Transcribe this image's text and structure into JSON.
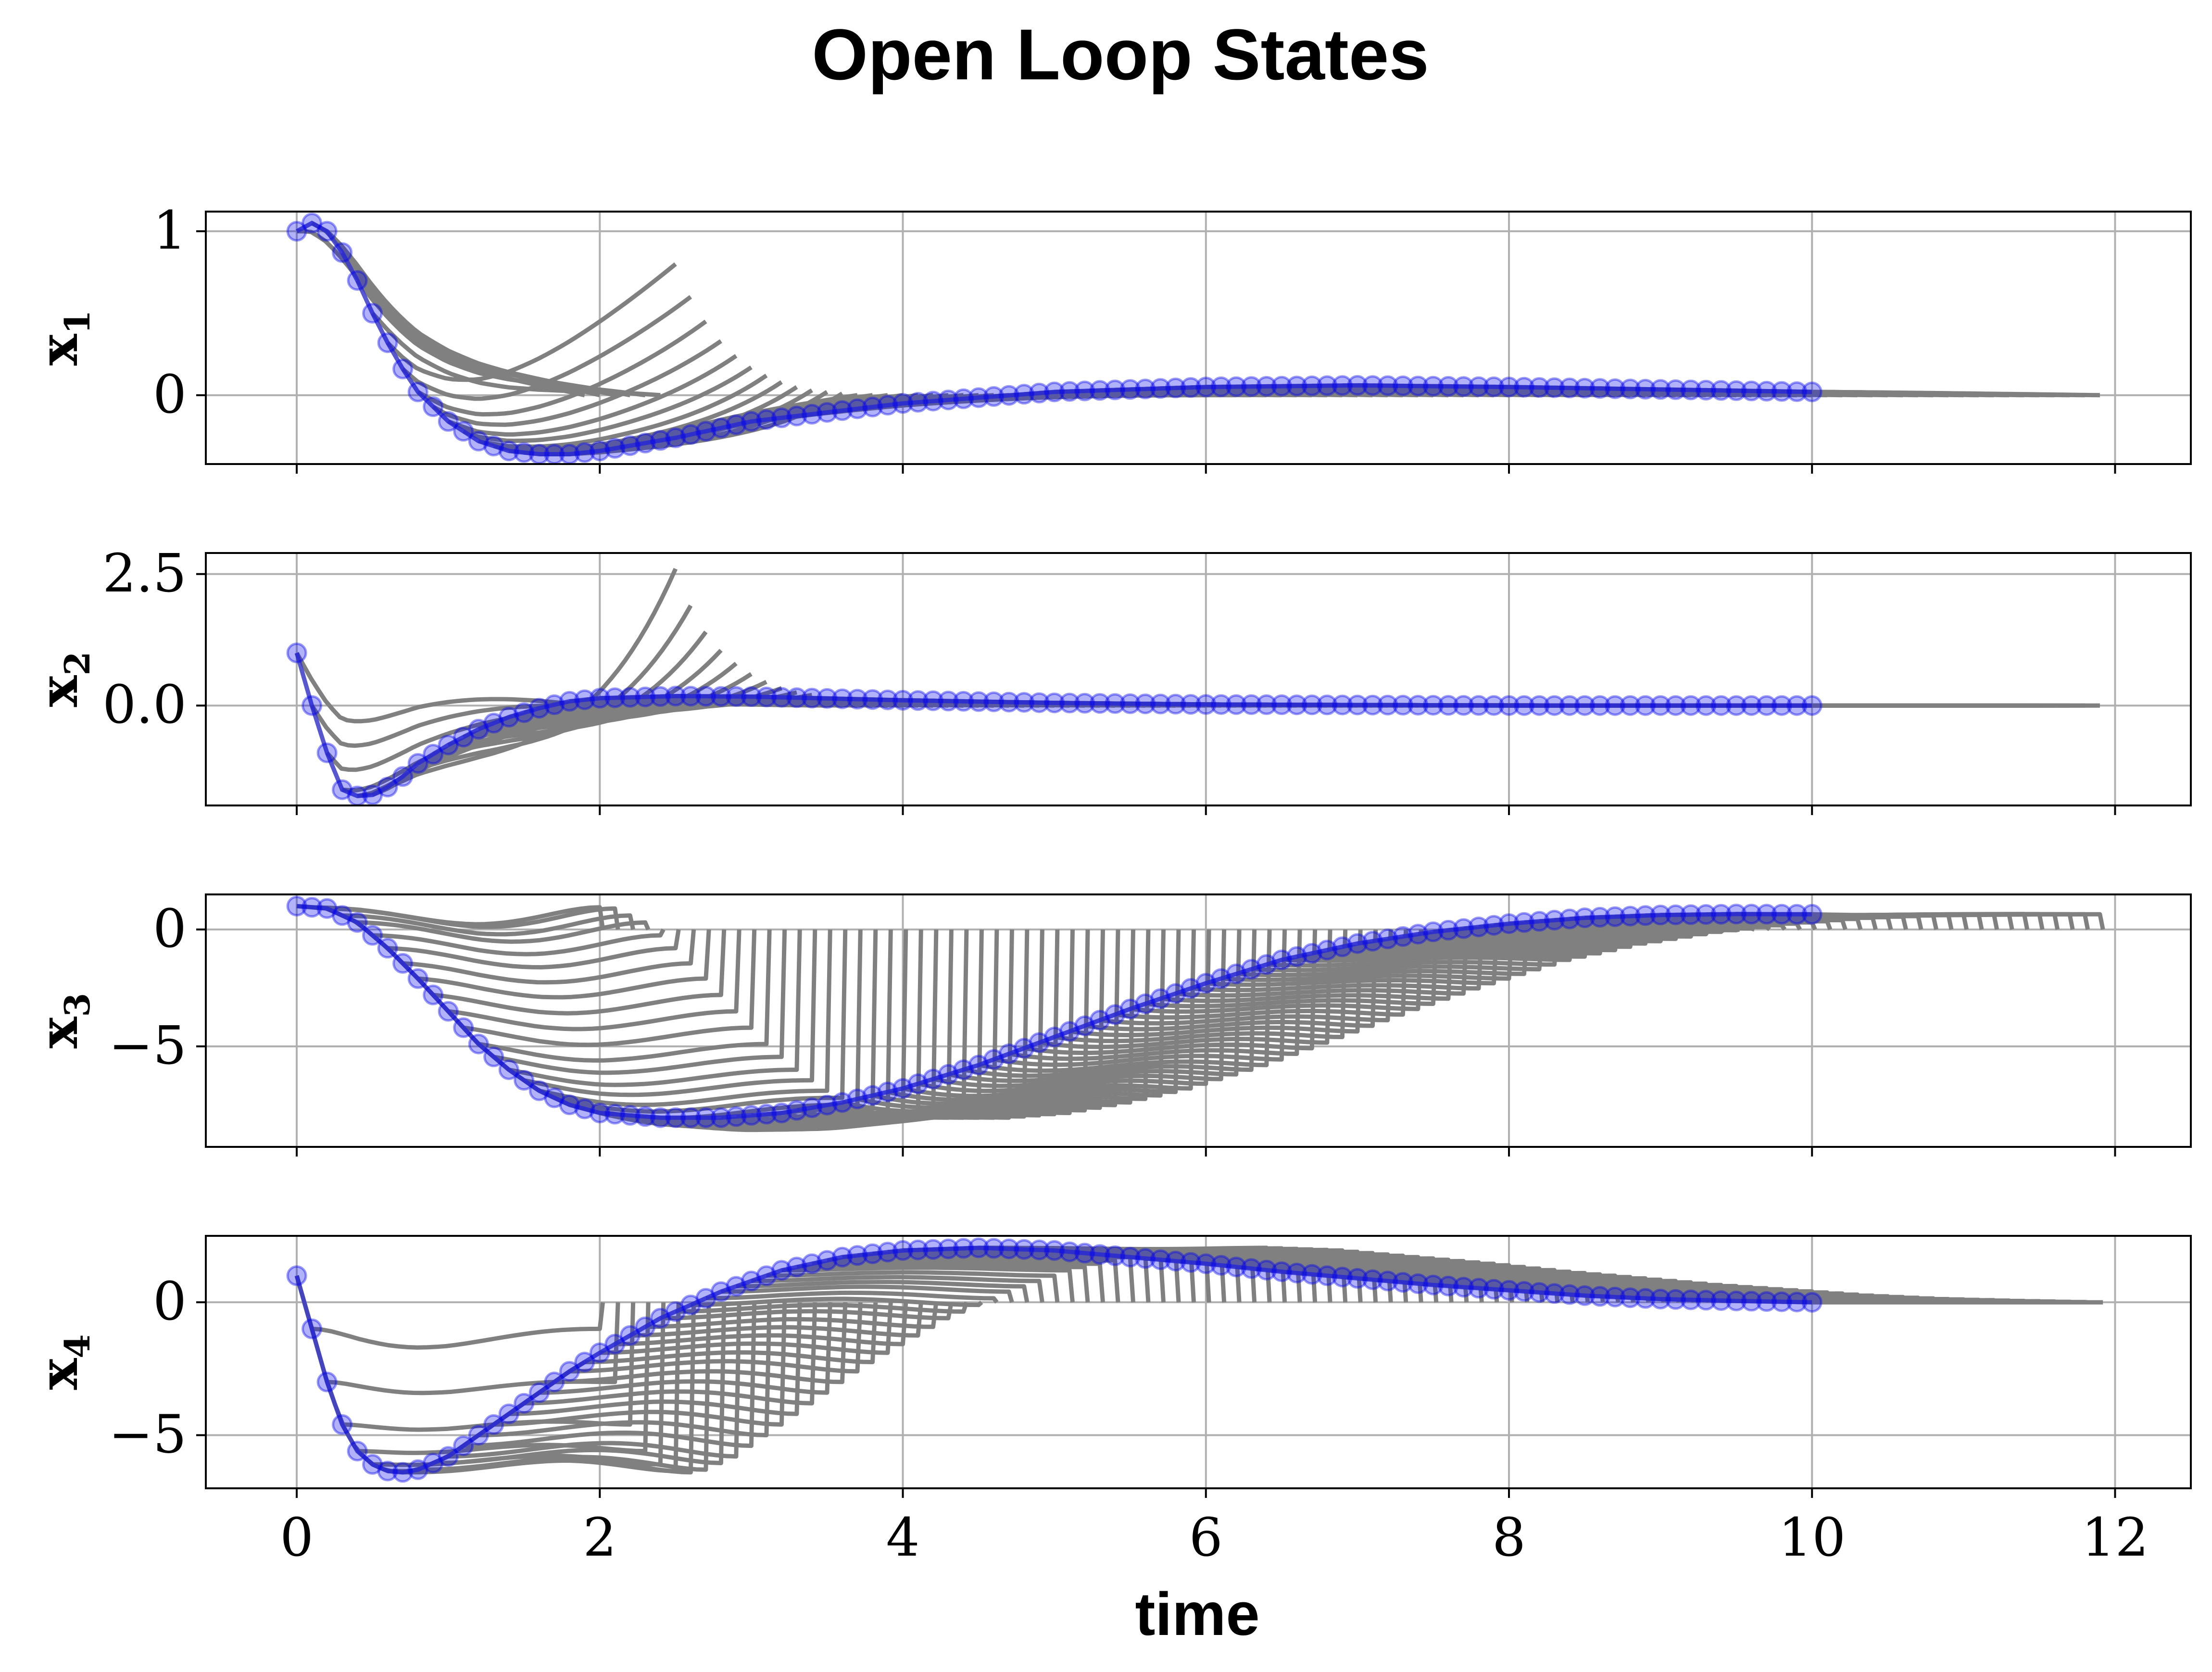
{
  "chart_data": {
    "type": "line",
    "title": "Open Loop States",
    "xlabel": "time",
    "xlim": [
      -0.6,
      12.5
    ],
    "xticks": [
      0,
      2,
      4,
      6,
      8,
      10,
      12
    ],
    "xtick_labels": [
      "0",
      "2",
      "4",
      "6",
      "8",
      "10",
      "12"
    ],
    "grid": true,
    "horizon": 1.9,
    "sample_step": 0.1,
    "t_end": 10,
    "colors": {
      "trajectory": "#0000ee",
      "prediction": "#808080",
      "grid": "#b0b0b0",
      "axes": "#000000"
    },
    "subplots": [
      {
        "ylabel": "x",
        "ylabel_sub": "1",
        "ylim": [
          -0.42,
          1.12
        ],
        "yticks": [
          0,
          1
        ],
        "ytick_labels": [
          "0",
          "1"
        ],
        "keypoints": [
          [
            0,
            1.0
          ],
          [
            0.1,
            1.05
          ],
          [
            0.2,
            1.0
          ],
          [
            0.3,
            0.87
          ],
          [
            0.4,
            0.7
          ],
          [
            0.5,
            0.5
          ],
          [
            0.6,
            0.32
          ],
          [
            0.7,
            0.16
          ],
          [
            0.8,
            0.02
          ],
          [
            1.0,
            -0.16
          ],
          [
            1.2,
            -0.28
          ],
          [
            1.4,
            -0.34
          ],
          [
            1.6,
            -0.36
          ],
          [
            1.8,
            -0.36
          ],
          [
            2.0,
            -0.34
          ],
          [
            2.5,
            -0.26
          ],
          [
            3.0,
            -0.16
          ],
          [
            4.0,
            -0.05
          ],
          [
            5.0,
            0.02
          ],
          [
            6.0,
            0.05
          ],
          [
            7.0,
            0.06
          ],
          [
            8.0,
            0.05
          ],
          [
            9.0,
            0.035
          ],
          [
            10.0,
            0.02
          ]
        ],
        "predictions": [
          {
            "start": 0.6,
            "end_value": 0.8
          },
          {
            "start": 0.7,
            "end_value": 0.6
          },
          {
            "start": 0.8,
            "end_value": 0.45
          },
          {
            "start": 0.9,
            "end_value": 0.33
          },
          {
            "start": 1.0,
            "end_value": 0.24
          },
          {
            "start": 1.1,
            "end_value": 0.17
          },
          {
            "start": 1.2,
            "end_value": 0.12
          },
          {
            "start": 1.3,
            "end_value": 0.08
          },
          {
            "start": 1.4,
            "end_value": 0.05
          },
          {
            "start": 1.5,
            "end_value": 0.03
          },
          {
            "start": 1.6,
            "end_value": 0.02
          },
          {
            "start": 1.7,
            "end_value": 0.01
          }
        ],
        "later_end": 0.0,
        "later_curve": 1.2
      },
      {
        "ylabel": "x",
        "ylabel_sub": "2",
        "ylim": [
          -1.9,
          2.9
        ],
        "yticks": [
          0.0,
          2.5
        ],
        "ytick_labels": [
          "0.0",
          "2.5"
        ],
        "keypoints": [
          [
            0,
            1.0
          ],
          [
            0.1,
            0.0
          ],
          [
            0.2,
            -0.9
          ],
          [
            0.3,
            -1.6
          ],
          [
            0.4,
            -1.72
          ],
          [
            0.5,
            -1.7
          ],
          [
            0.6,
            -1.55
          ],
          [
            0.7,
            -1.35
          ],
          [
            0.8,
            -1.1
          ],
          [
            1.0,
            -0.75
          ],
          [
            1.2,
            -0.45
          ],
          [
            1.4,
            -0.22
          ],
          [
            1.6,
            -0.05
          ],
          [
            1.8,
            0.08
          ],
          [
            2.0,
            0.14
          ],
          [
            2.5,
            0.18
          ],
          [
            3.0,
            0.17
          ],
          [
            4.0,
            0.1
          ],
          [
            5.0,
            0.05
          ],
          [
            6.0,
            0.02
          ],
          [
            8.0,
            0.0
          ],
          [
            10.0,
            0.0
          ]
        ],
        "predictions": [
          {
            "start": 0.6,
            "end_value": 2.6
          },
          {
            "start": 0.7,
            "end_value": 1.9
          },
          {
            "start": 0.8,
            "end_value": 1.4
          },
          {
            "start": 0.9,
            "end_value": 1.05
          },
          {
            "start": 1.0,
            "end_value": 0.8
          },
          {
            "start": 1.1,
            "end_value": 0.6
          },
          {
            "start": 1.2,
            "end_value": 0.45
          },
          {
            "start": 1.3,
            "end_value": 0.33
          },
          {
            "start": 1.4,
            "end_value": 0.25
          },
          {
            "start": 1.5,
            "end_value": 0.2
          }
        ],
        "later_end": 0.0,
        "later_curve": 1.2
      },
      {
        "ylabel": "x",
        "ylabel_sub": "3",
        "ylim": [
          -9.3,
          1.5
        ],
        "yticks": [
          -5,
          0
        ],
        "ytick_labels": [
          "−5",
          "0"
        ],
        "keypoints": [
          [
            0,
            1.0
          ],
          [
            0.2,
            0.9
          ],
          [
            0.4,
            0.3
          ],
          [
            0.6,
            -0.8
          ],
          [
            0.8,
            -2.1
          ],
          [
            1.0,
            -3.5
          ],
          [
            1.2,
            -4.9
          ],
          [
            1.4,
            -6.0
          ],
          [
            1.6,
            -6.9
          ],
          [
            1.8,
            -7.5
          ],
          [
            2.0,
            -7.85
          ],
          [
            2.4,
            -8.05
          ],
          [
            2.8,
            -8.05
          ],
          [
            3.2,
            -7.85
          ],
          [
            3.6,
            -7.4
          ],
          [
            4.0,
            -6.8
          ],
          [
            4.5,
            -5.8
          ],
          [
            5.0,
            -4.6
          ],
          [
            5.5,
            -3.4
          ],
          [
            6.0,
            -2.3
          ],
          [
            6.5,
            -1.3
          ],
          [
            7.0,
            -0.6
          ],
          [
            7.5,
            -0.1
          ],
          [
            8.0,
            0.25
          ],
          [
            8.5,
            0.5
          ],
          [
            9.0,
            0.62
          ],
          [
            9.5,
            0.66
          ],
          [
            10.0,
            0.65
          ]
        ],
        "predictions_mode": "reset",
        "reset_value": 0.0,
        "pred_curve": 0.6,
        "dip_factor": 0.12
      },
      {
        "ylabel": "x",
        "ylabel_sub": "4",
        "ylim": [
          -7.0,
          2.5
        ],
        "yticks": [
          -5,
          0
        ],
        "ytick_labels": [
          "−5",
          "0"
        ],
        "keypoints": [
          [
            0,
            1.0
          ],
          [
            0.1,
            -1.0
          ],
          [
            0.2,
            -3.0
          ],
          [
            0.3,
            -4.6
          ],
          [
            0.4,
            -5.6
          ],
          [
            0.5,
            -6.1
          ],
          [
            0.6,
            -6.35
          ],
          [
            0.7,
            -6.4
          ],
          [
            0.8,
            -6.3
          ],
          [
            1.0,
            -5.8
          ],
          [
            1.2,
            -5.0
          ],
          [
            1.4,
            -4.2
          ],
          [
            1.6,
            -3.4
          ],
          [
            1.8,
            -2.6
          ],
          [
            2.0,
            -1.9
          ],
          [
            2.4,
            -0.6
          ],
          [
            2.8,
            0.4
          ],
          [
            3.2,
            1.2
          ],
          [
            3.6,
            1.7
          ],
          [
            4.0,
            1.95
          ],
          [
            4.5,
            2.05
          ],
          [
            5.0,
            1.95
          ],
          [
            5.5,
            1.7
          ],
          [
            6.0,
            1.45
          ],
          [
            6.5,
            1.15
          ],
          [
            7.0,
            0.9
          ],
          [
            7.5,
            0.65
          ],
          [
            8.0,
            0.45
          ],
          [
            8.5,
            0.25
          ],
          [
            9.0,
            0.12
          ],
          [
            9.5,
            0.05
          ],
          [
            10.0,
            0.0
          ]
        ],
        "predictions_mode": "reset",
        "reset_value": 0.0,
        "pred_curve": 0.6,
        "dip_factor": 0.0
      }
    ]
  }
}
